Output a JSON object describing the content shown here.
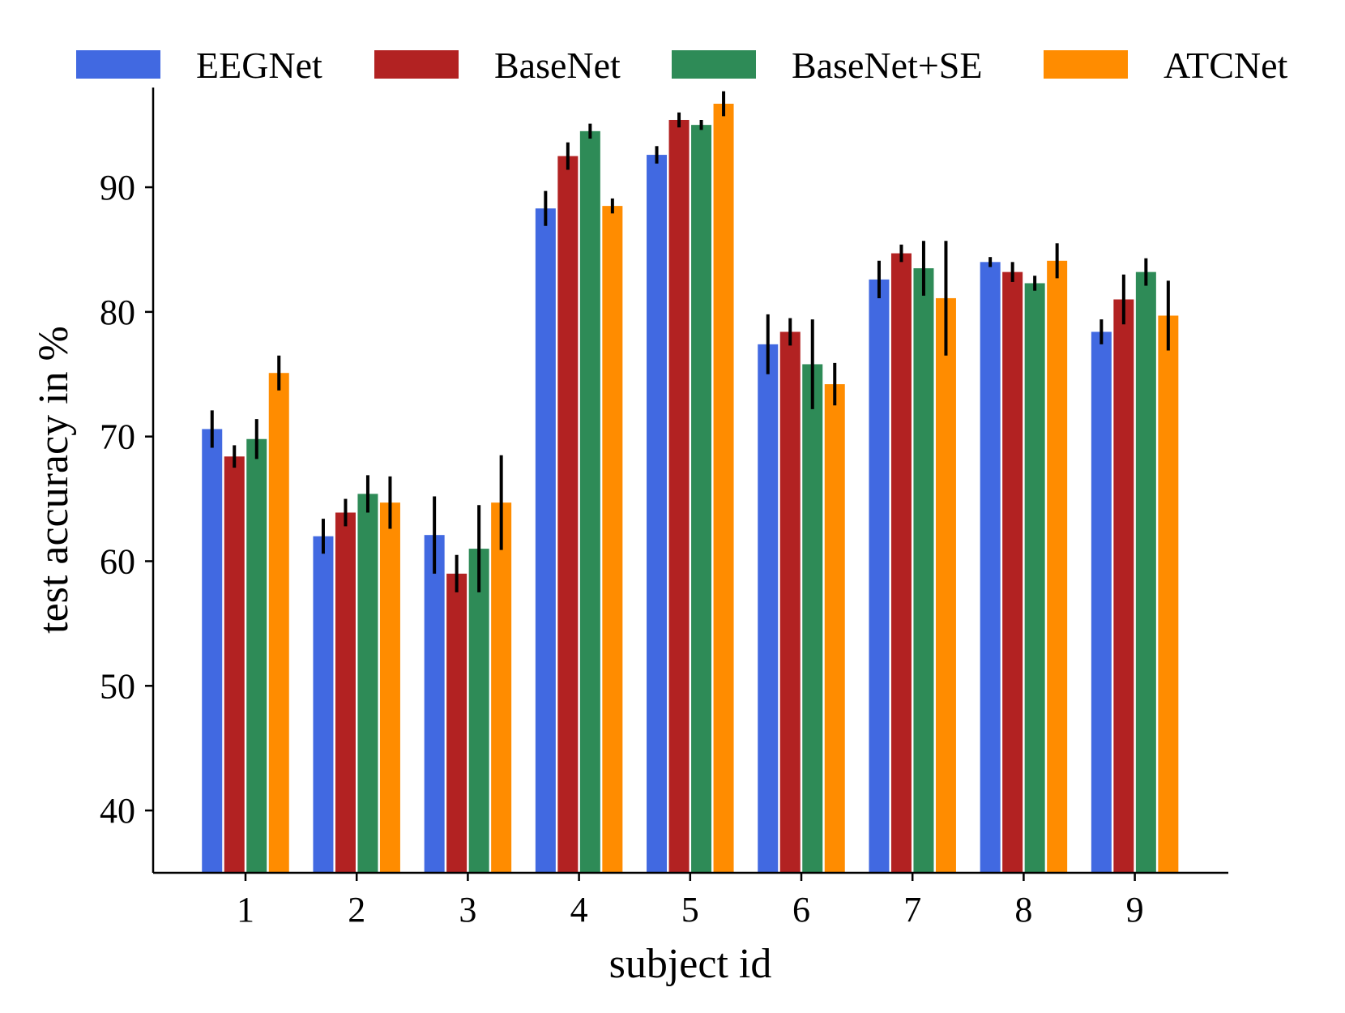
{
  "chart_data": {
    "type": "bar",
    "title": "",
    "xlabel": "subject id",
    "ylabel": "test accuracy in %",
    "ylim": [
      35,
      98
    ],
    "yticks": [
      40,
      50,
      60,
      70,
      80,
      90
    ],
    "categories": [
      "1",
      "2",
      "3",
      "4",
      "5",
      "6",
      "7",
      "8",
      "9"
    ],
    "legend_position": "top",
    "grid": false,
    "series": [
      {
        "name": "EEGNet",
        "color": "#4169e1",
        "values": [
          70.6,
          62.0,
          62.1,
          88.3,
          92.6,
          77.4,
          82.6,
          84.0,
          78.4
        ],
        "errors": [
          1.5,
          1.4,
          3.1,
          1.4,
          0.7,
          2.4,
          1.5,
          0.4,
          1.0
        ]
      },
      {
        "name": "BaseNet",
        "color": "#b22222",
        "values": [
          68.4,
          63.9,
          59.0,
          92.5,
          95.4,
          78.4,
          84.7,
          83.2,
          81.0
        ],
        "errors": [
          0.9,
          1.1,
          1.5,
          1.1,
          0.6,
          1.1,
          0.7,
          0.8,
          2.0
        ]
      },
      {
        "name": "BaseNet+SE",
        "color": "#2e8b57",
        "values": [
          69.8,
          65.4,
          61.0,
          94.5,
          95.0,
          75.8,
          83.5,
          82.3,
          83.2
        ],
        "errors": [
          1.6,
          1.5,
          3.5,
          0.6,
          0.4,
          3.6,
          2.2,
          0.6,
          1.1
        ]
      },
      {
        "name": "ATCNet",
        "color": "#ff8c00",
        "values": [
          75.1,
          64.7,
          64.7,
          88.5,
          96.7,
          74.2,
          81.1,
          84.1,
          79.7
        ],
        "errors": [
          1.4,
          2.1,
          3.8,
          0.6,
          1.0,
          1.7,
          4.6,
          1.4,
          2.8
        ]
      }
    ]
  }
}
